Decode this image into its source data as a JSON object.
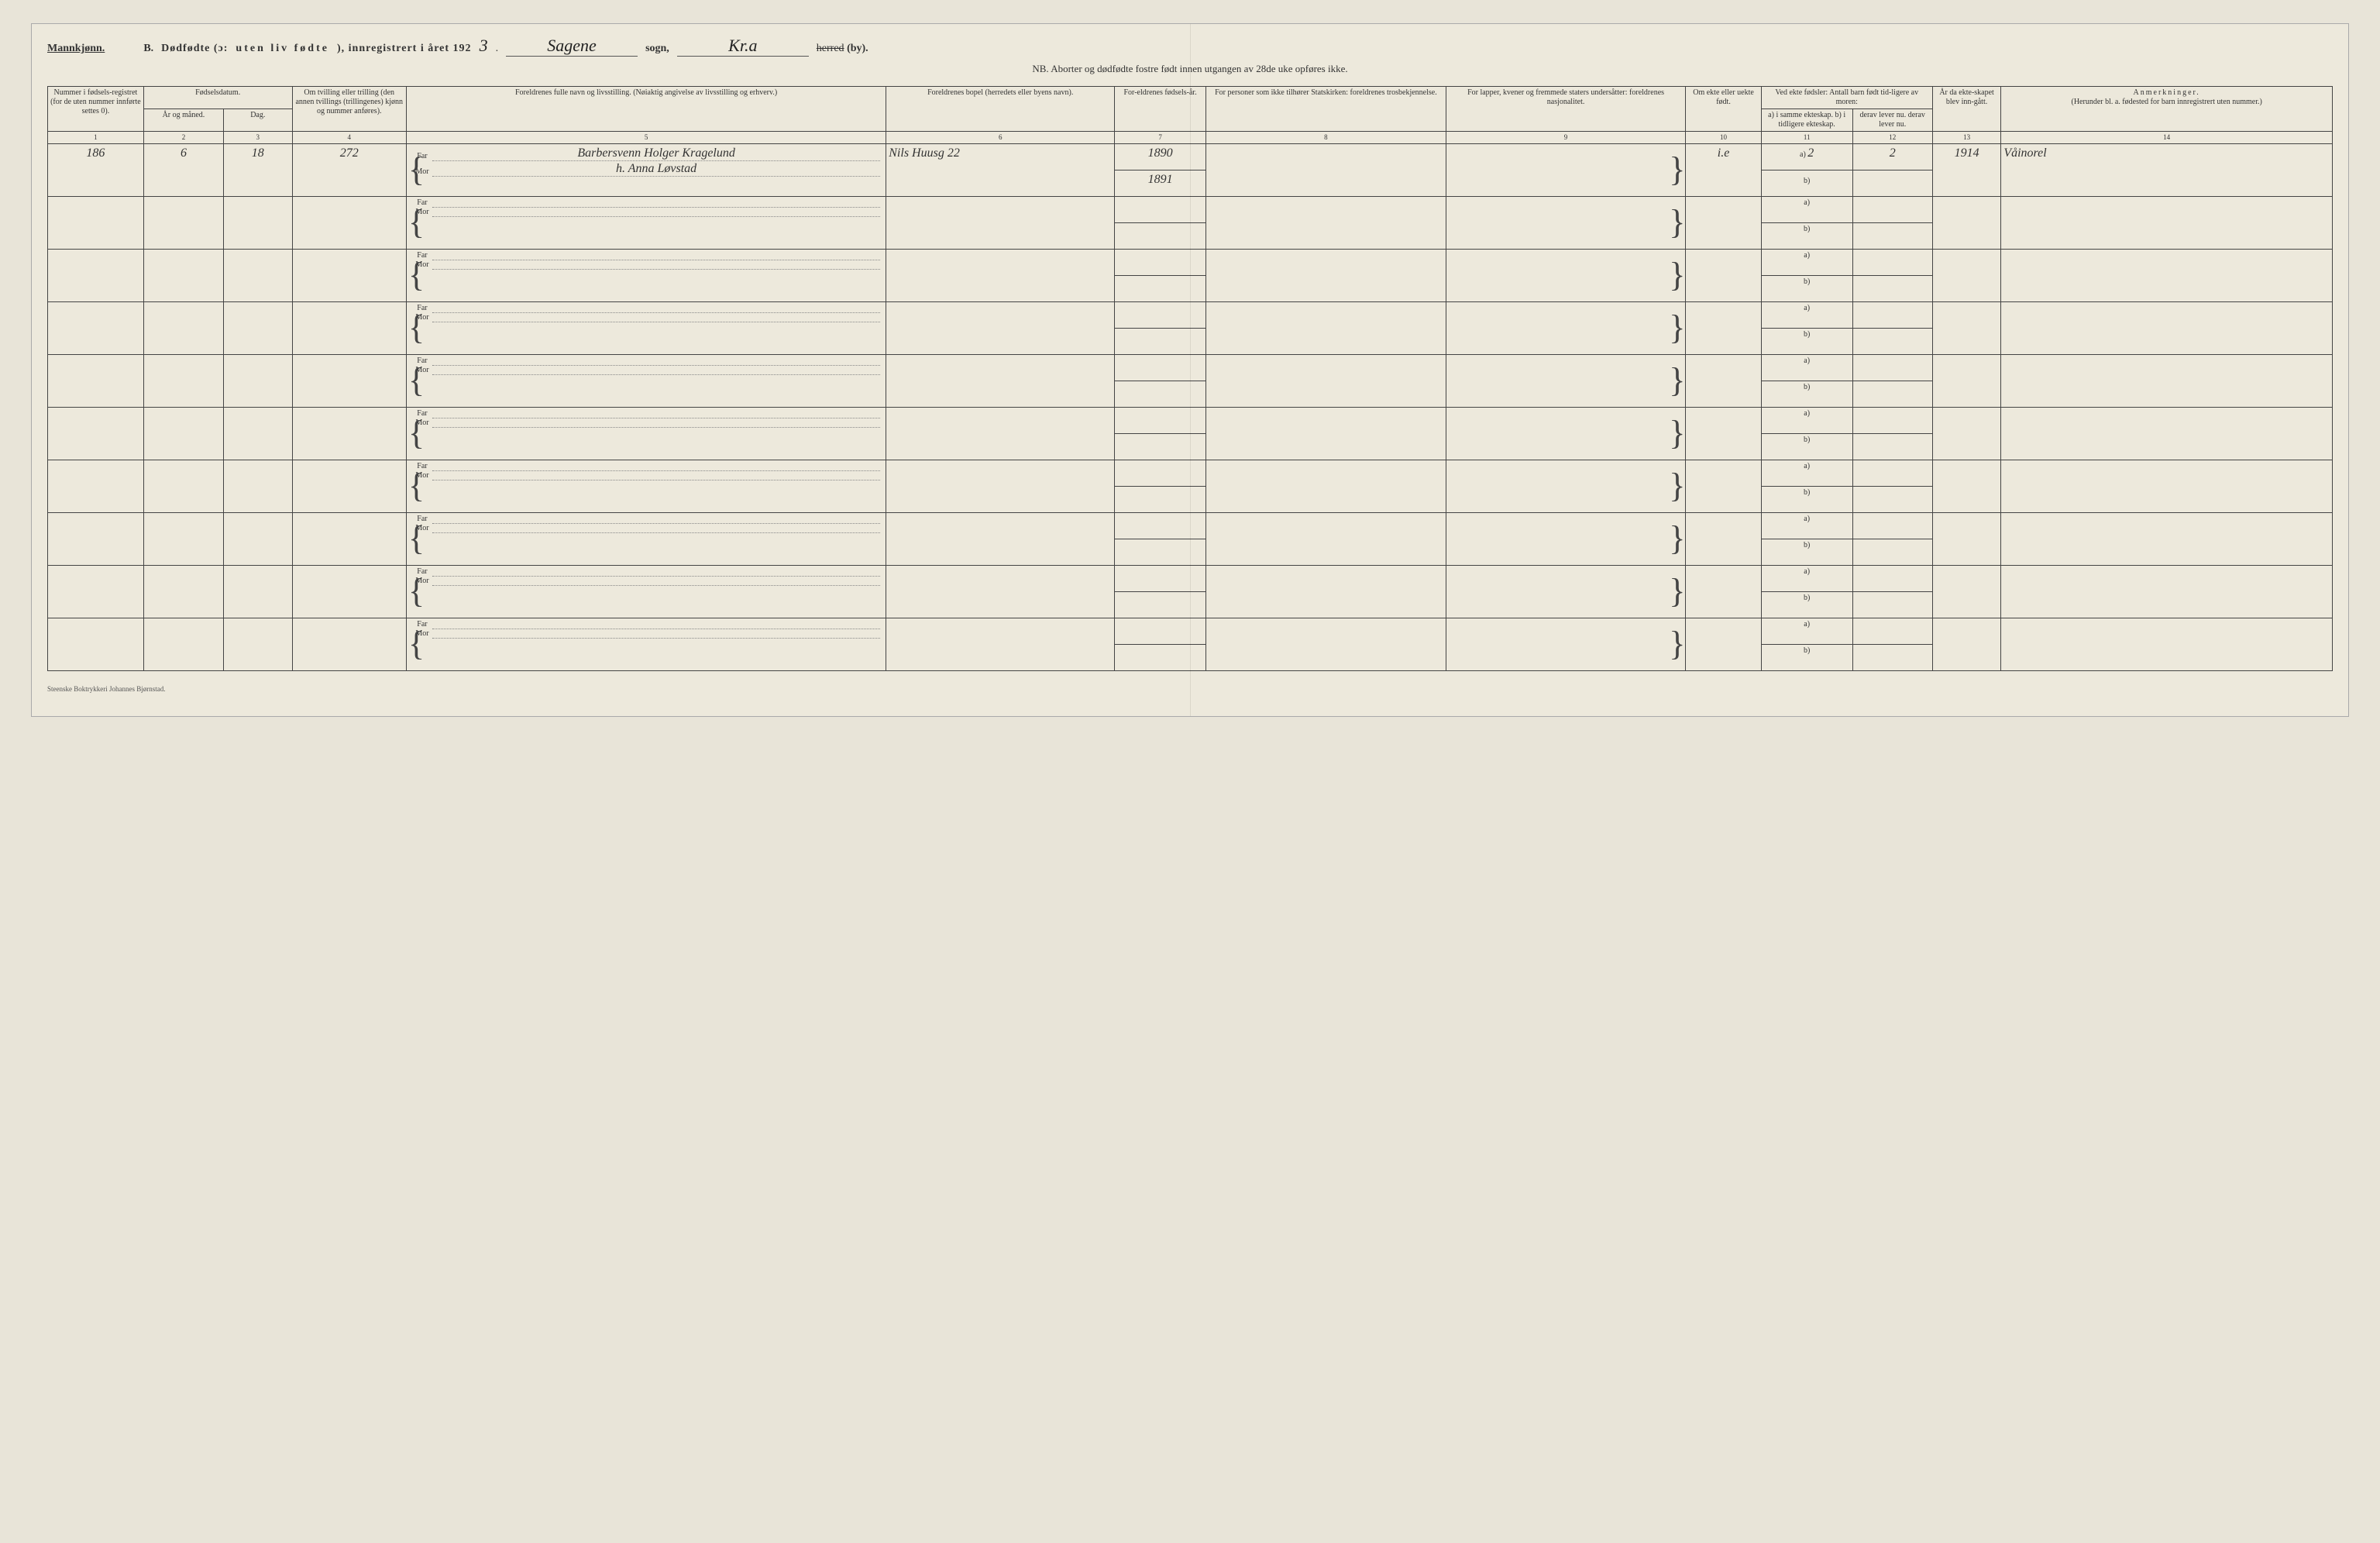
{
  "header": {
    "gender_label": "Mannkjønn.",
    "section_letter": "B.",
    "title_main": "Dødfødte (ɔ:",
    "title_spaced": "uten liv fødte",
    "title_tail": "), innregistrert i året 192",
    "year_suffix_hw": "3",
    "period": ".",
    "sogn_value_hw": "Sagene",
    "sogn_label": "sogn,",
    "herred_value_hw": "Kr.a",
    "herred_struck": "herred",
    "by_label": "(by)."
  },
  "nb_line": "NB.  Aborter og dødfødte fostre født innen utgangen av 28de uke opføres ikke.",
  "columns": {
    "c1": "Nummer i fødsels-registret (for de uten nummer innførte settes 0).",
    "c23_group": "Fødselsdatum.",
    "c2": "År og måned.",
    "c3": "Dag.",
    "c4": "Om tvilling eller trilling (den annen tvillings (trillingenes) kjønn og nummer anføres).",
    "c5": "Foreldrenes fulle navn og livsstilling. (Nøiaktig angivelse av livsstilling og erhverv.)",
    "c6": "Foreldrenes bopel (herredets eller byens navn).",
    "c7": "For-eldrenes fødsels-år.",
    "c8": "For personer som ikke tilhører Statskirken: foreldrenes trosbekjennelse.",
    "c9": "For lapper, kvener og fremmede staters undersåtter: foreldrenes nasjonalitet.",
    "c10": "Om ekte eller uekte født.",
    "c11_12_group": "Ved ekte fødsler: Antall barn født tid-ligere av moren:",
    "c11": "a) i samme ekteskap.  b) i tidligere ekteskap.",
    "c12": "derav lever nu.  derav lever nu.",
    "c13": "År da ekte-skapet blev inn-gått.",
    "c14_title": "Anmerkninger.",
    "c14_sub": "(Herunder bl. a. fødested for barn innregistrert uten nummer.)"
  },
  "colnums": [
    "1",
    "2",
    "3",
    "4",
    "5",
    "6",
    "7",
    "8",
    "9",
    "10",
    "11",
    "12",
    "13",
    "14"
  ],
  "parent_labels": {
    "far": "Far",
    "mor": "Mor"
  },
  "ab_labels": {
    "a": "a)",
    "b": "b)"
  },
  "entry": {
    "number": "186",
    "year_month": "6",
    "day": "18",
    "twin_note": "272",
    "father_name": "Barbersvenn Holger Kragelund",
    "mother_name": "h. Anna Løvstad",
    "residence": "Nils Huusg 22",
    "father_birth_year": "1890",
    "mother_birth_year": "1891",
    "legitimacy": "i.e",
    "col11a": "2",
    "col12a": "2",
    "col11b": "",
    "col12b": "",
    "marriage_year": "1914",
    "remark": "Våinorel"
  },
  "row_count_empty": 9,
  "footer_imprint": "Steenske Boktrykkeri Johannes Bjørnstad."
}
